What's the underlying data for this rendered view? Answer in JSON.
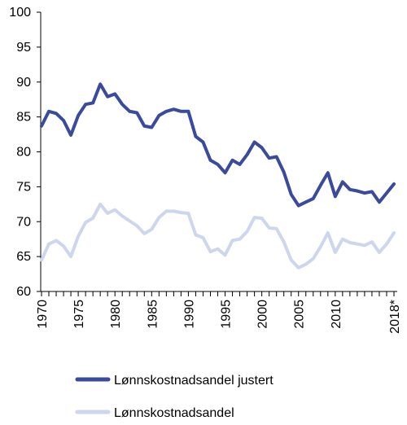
{
  "chart_data": {
    "type": "line",
    "title": "",
    "xlabel": "",
    "ylabel": "",
    "ylim": [
      60,
      100
    ],
    "yticks": [
      60,
      65,
      70,
      75,
      80,
      85,
      90,
      95,
      100
    ],
    "xlim": [
      1970,
      2018
    ],
    "xtick_labels": [
      {
        "x": 1970,
        "label": "1970"
      },
      {
        "x": 1975,
        "label": "1975"
      },
      {
        "x": 1980,
        "label": "1980"
      },
      {
        "x": 1985,
        "label": "1985"
      },
      {
        "x": 1990,
        "label": "1990"
      },
      {
        "x": 1995,
        "label": "1995"
      },
      {
        "x": 2000,
        "label": "2000"
      },
      {
        "x": 2005,
        "label": "2005"
      },
      {
        "x": 2010,
        "label": "2010"
      },
      {
        "x": 2018,
        "label": "2018*"
      }
    ],
    "grid": false,
    "legend_position": "bottom",
    "x": [
      1970,
      1971,
      1972,
      1973,
      1974,
      1975,
      1976,
      1977,
      1978,
      1979,
      1980,
      1981,
      1982,
      1983,
      1984,
      1985,
      1986,
      1987,
      1988,
      1989,
      1990,
      1991,
      1992,
      1993,
      1994,
      1995,
      1996,
      1997,
      1998,
      1999,
      2000,
      2001,
      2002,
      2003,
      2004,
      2005,
      2006,
      2007,
      2008,
      2009,
      2010,
      2011,
      2012,
      2013,
      2014,
      2015,
      2016,
      2017,
      2018
    ],
    "series": [
      {
        "name": "Lønnskostnadsandel justert",
        "color": "#3a4a9c",
        "values": [
          83.7,
          85.8,
          85.5,
          84.5,
          82.4,
          85.2,
          86.8,
          87.0,
          89.7,
          87.9,
          88.3,
          86.8,
          85.8,
          85.6,
          83.7,
          83.5,
          85.2,
          85.8,
          86.1,
          85.8,
          85.8,
          82.2,
          81.4,
          78.8,
          78.2,
          77.0,
          78.8,
          78.2,
          79.6,
          81.4,
          80.6,
          79.1,
          79.3,
          77.1,
          73.9,
          72.3,
          72.8,
          73.3,
          75.2,
          77.0,
          73.6,
          75.7,
          74.6,
          74.4,
          74.1,
          74.3,
          72.8,
          74.1,
          75.4
        ]
      },
      {
        "name": "Lønnskostnadsandel",
        "color": "#cdd6ec",
        "values": [
          64.5,
          66.8,
          67.3,
          66.5,
          65.0,
          67.9,
          69.9,
          70.5,
          72.5,
          71.2,
          71.7,
          70.8,
          70.1,
          69.4,
          68.3,
          68.9,
          70.6,
          71.5,
          71.5,
          71.3,
          71.2,
          68.1,
          67.7,
          65.7,
          66.1,
          65.2,
          67.3,
          67.5,
          68.6,
          70.6,
          70.5,
          69.1,
          69.0,
          67.1,
          64.5,
          63.4,
          63.9,
          64.7,
          66.4,
          68.4,
          65.6,
          67.5,
          67.0,
          66.8,
          66.6,
          67.1,
          65.6,
          66.8,
          68.4
        ]
      }
    ]
  }
}
